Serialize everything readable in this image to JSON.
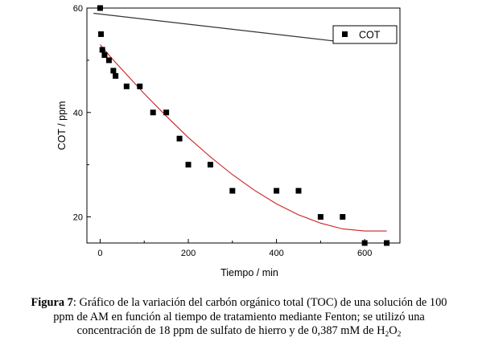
{
  "chart_data": {
    "type": "scatter",
    "xlabel": "Tiempo / min",
    "ylabel": "COT / ppm",
    "xlim": [
      -30,
      680
    ],
    "ylim": [
      15,
      60
    ],
    "xticks": [
      0,
      200,
      400,
      600
    ],
    "yticks": [
      20,
      40,
      60
    ],
    "grid": false,
    "legend_position": "top-right",
    "series": [
      {
        "name": "COT",
        "marker": "square",
        "color": "#000000",
        "points": [
          {
            "x": 0,
            "y": 60
          },
          {
            "x": 2,
            "y": 55
          },
          {
            "x": 5,
            "y": 52
          },
          {
            "x": 10,
            "y": 51
          },
          {
            "x": 20,
            "y": 50
          },
          {
            "x": 30,
            "y": 48
          },
          {
            "x": 35,
            "y": 47
          },
          {
            "x": 60,
            "y": 45
          },
          {
            "x": 90,
            "y": 45
          },
          {
            "x": 120,
            "y": 40
          },
          {
            "x": 150,
            "y": 40
          },
          {
            "x": 180,
            "y": 35
          },
          {
            "x": 200,
            "y": 30
          },
          {
            "x": 250,
            "y": 30
          },
          {
            "x": 300,
            "y": 25
          },
          {
            "x": 400,
            "y": 25
          },
          {
            "x": 450,
            "y": 25
          },
          {
            "x": 500,
            "y": 20
          },
          {
            "x": 550,
            "y": 20
          },
          {
            "x": 600,
            "y": 15
          },
          {
            "x": 650,
            "y": 15
          }
        ]
      }
    ],
    "fit_curve": {
      "color": "#cc2222",
      "points": [
        [
          0,
          53
        ],
        [
          25,
          50.5
        ],
        [
          50,
          48.2
        ],
        [
          100,
          43.6
        ],
        [
          150,
          39.3
        ],
        [
          200,
          35.2
        ],
        [
          250,
          31.5
        ],
        [
          300,
          28.1
        ],
        [
          350,
          25.1
        ],
        [
          400,
          22.5
        ],
        [
          450,
          20.4
        ],
        [
          500,
          18.8
        ],
        [
          550,
          17.7
        ],
        [
          600,
          17.3
        ],
        [
          650,
          17.3
        ]
      ]
    },
    "decorative_line": {
      "color": "#333333",
      "points": [
        [
          -15,
          59
        ],
        [
          550,
          53.5
        ]
      ]
    }
  },
  "caption": {
    "label": "Figura 7",
    "line1_text": ": Gráfico de la variación del carbón orgánico total (TOC) de una solución de 100",
    "line2": "ppm de AM en función al tiempo de tratamiento mediante Fenton; se utilizó una",
    "line3_text": "concentración de 18 ppm de sulfato de hierro y de 0,387 mM de H",
    "h2o2_sub1": "2",
    "h2o2_o": "O",
    "h2o2_sub2": "2"
  }
}
